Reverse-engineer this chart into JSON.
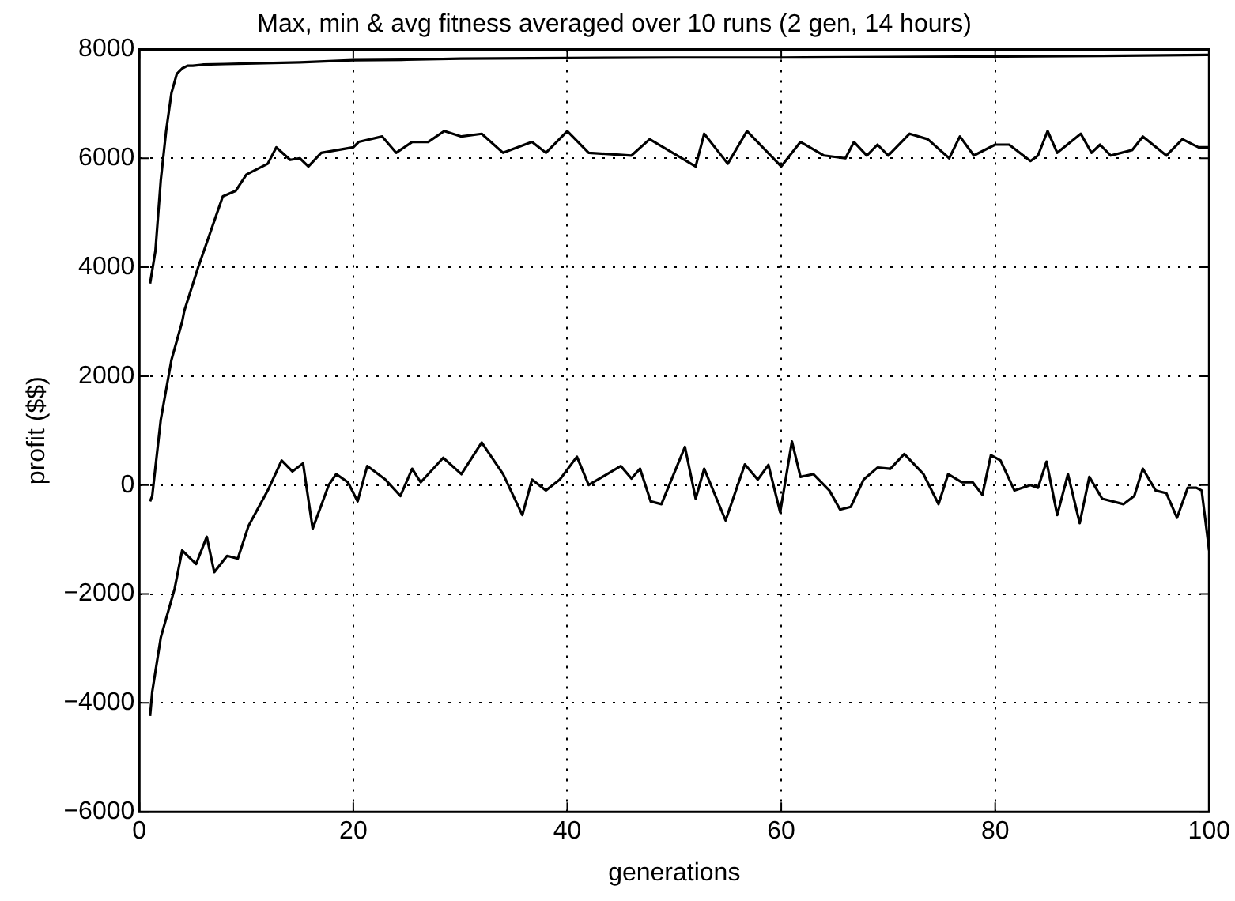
{
  "chart_data": {
    "type": "line",
    "title": "Max, min & avg fitness averaged over 10 runs (2 gen, 14 hours)",
    "xlabel": "generations",
    "ylabel": "profit ($$)",
    "xlim": [
      0,
      100
    ],
    "xticks": [
      0,
      20,
      40,
      60,
      80,
      100
    ],
    "ylim": [
      -6000,
      8000
    ],
    "yticks": [
      -6000,
      -4000,
      -2000,
      0,
      2000,
      4000,
      6000,
      8000
    ],
    "grid": true,
    "legend": false,
    "marker": "none",
    "line_style": "solid",
    "series": [
      {
        "color": "#000000",
        "x": [
          1,
          1.5,
          2,
          2.5,
          3,
          3.5,
          4,
          4.5,
          5,
          6,
          8,
          10,
          15,
          20,
          25,
          30,
          40,
          50,
          60,
          70,
          80,
          90,
          100
        ],
        "values": [
          3700,
          4300,
          5600,
          6500,
          7200,
          7550,
          7650,
          7700,
          7700,
          7720,
          7730,
          7740,
          7760,
          7800,
          7810,
          7830,
          7840,
          7850,
          7850,
          7860,
          7870,
          7880,
          7900
        ]
      },
      {
        "color": "#000000",
        "x": [
          1,
          1.2,
          2,
          3,
          4,
          4.2,
          5.5,
          7.8,
          9,
          10,
          12,
          12.8,
          14.1,
          15,
          15.8,
          17,
          20,
          20.5,
          22.7,
          24,
          25.5,
          27,
          28.5,
          30.1,
          32,
          34,
          36.7,
          38,
          40,
          42,
          46,
          47.7,
          52,
          52.8,
          55,
          56.8,
          60,
          61.8,
          64,
          66,
          66.8,
          68,
          69,
          70,
          72,
          73.7,
          75.7,
          76.7,
          78,
          80,
          81.3,
          83.3,
          84,
          84.9,
          85.8,
          88,
          89,
          89.8,
          90.8,
          92.8,
          93.8,
          96,
          97.5,
          99,
          100
        ],
        "values": [
          -300,
          -200,
          1200,
          2300,
          3000,
          3200,
          4000,
          5300,
          5400,
          5700,
          5900,
          6200,
          5970,
          6000,
          5850,
          6100,
          6200,
          6300,
          6400,
          6100,
          6300,
          6300,
          6500,
          6400,
          6450,
          6100,
          6300,
          6100,
          6500,
          6100,
          6050,
          6350,
          5850,
          6450,
          5900,
          6500,
          5850,
          6300,
          6050,
          6000,
          6300,
          6050,
          6250,
          6050,
          6450,
          6350,
          6000,
          6400,
          6050,
          6250,
          6250,
          5950,
          6050,
          6500,
          6100,
          6450,
          6100,
          6250,
          6050,
          6150,
          6400,
          6050,
          6350,
          6200,
          6200
        ]
      },
      {
        "color": "#000000",
        "x": [
          1,
          1.2,
          2,
          3.3,
          4,
          5.3,
          6.3,
          7,
          8.2,
          9.2,
          10.2,
          12,
          13.3,
          14.3,
          15.3,
          16.2,
          17.7,
          18.4,
          19.5,
          20.4,
          21.3,
          23,
          24.4,
          25.5,
          26.3,
          28.4,
          30.1,
          32,
          34,
          35.8,
          36.7,
          38,
          39.3,
          40.9,
          42,
          45,
          46,
          46.8,
          47.8,
          48.8,
          51,
          52,
          52.8,
          54.8,
          56.6,
          57.8,
          58.8,
          59.9,
          61,
          61.8,
          63,
          64.5,
          65.5,
          66.5,
          67.7,
          69,
          70.2,
          71.5,
          73.3,
          74.7,
          75.6,
          76.9,
          77.9,
          78.8,
          79.6,
          80.5,
          81.8,
          83.3,
          84,
          84.8,
          85.8,
          86.8,
          87.9,
          88.8,
          90,
          92,
          93,
          93.8,
          95,
          96,
          97,
          98,
          98.8,
          99.3,
          100
        ],
        "values": [
          -4240,
          -3800,
          -2800,
          -1900,
          -1200,
          -1450,
          -950,
          -1600,
          -1300,
          -1350,
          -750,
          -100,
          450,
          250,
          400,
          -800,
          0,
          200,
          50,
          -300,
          350,
          100,
          -200,
          300,
          50,
          500,
          200,
          780,
          200,
          -550,
          100,
          -100,
          100,
          520,
          0,
          350,
          120,
          300,
          -300,
          -350,
          700,
          -250,
          300,
          -650,
          380,
          100,
          370,
          -500,
          800,
          150,
          200,
          -100,
          -450,
          -400,
          100,
          320,
          300,
          570,
          200,
          -350,
          200,
          50,
          50,
          -180,
          550,
          450,
          -100,
          0,
          -50,
          430,
          -550,
          200,
          -700,
          150,
          -250,
          -350,
          -200,
          300,
          -100,
          -150,
          -600,
          -50,
          -50,
          -100,
          -1200
        ]
      }
    ]
  }
}
